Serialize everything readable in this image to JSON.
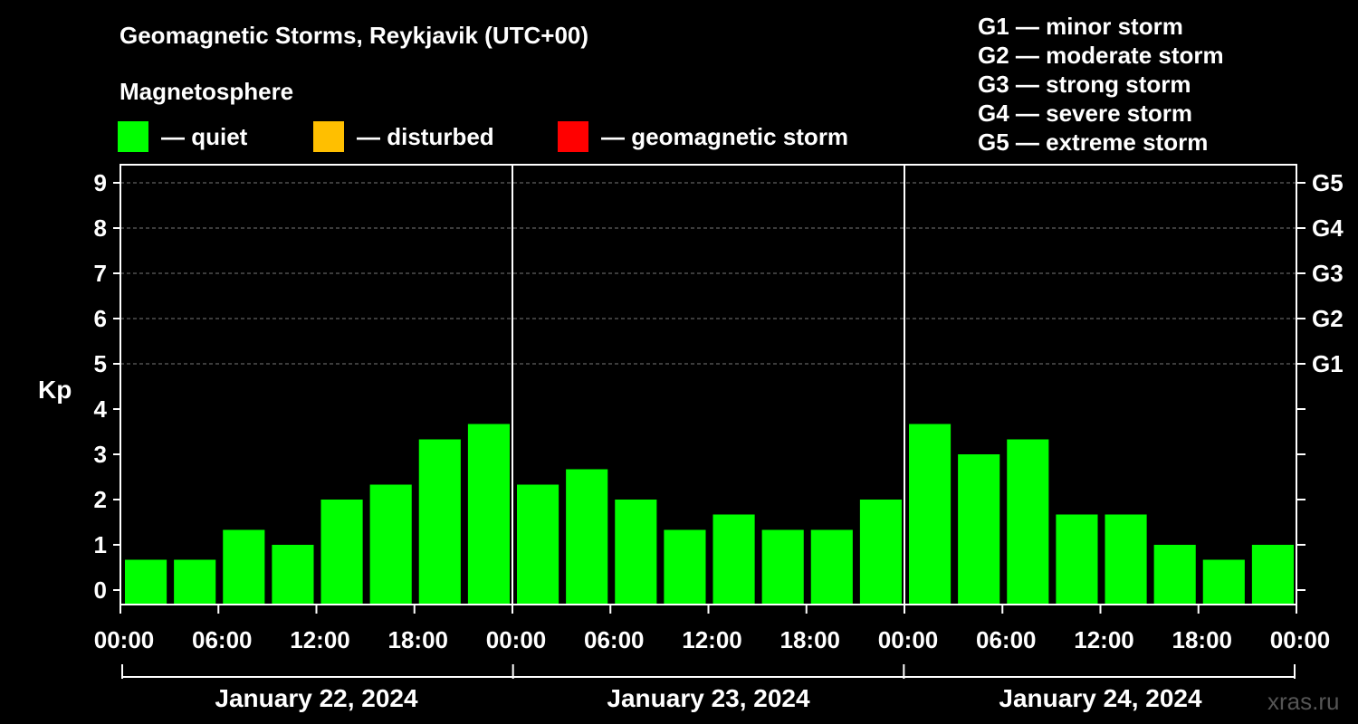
{
  "chart_data": {
    "type": "bar",
    "title": "Geomagnetic Storms, Reykjavik (UTC+00)",
    "subtitle": "Magnetosphere",
    "ylabel": "Kp",
    "ylim": [
      0,
      9
    ],
    "y_ticks": [
      "0",
      "1",
      "2",
      "3",
      "4",
      "5",
      "6",
      "7",
      "8",
      "9"
    ],
    "right_ticks": [
      {
        "label": "G1",
        "kp": 5
      },
      {
        "label": "G2",
        "kp": 6
      },
      {
        "label": "G3",
        "kp": 7
      },
      {
        "label": "G4",
        "kp": 8
      },
      {
        "label": "G5",
        "kp": 9
      }
    ],
    "x_tick_labels": [
      "00:00",
      "06:00",
      "12:00",
      "18:00",
      "00:00",
      "06:00",
      "12:00",
      "18:00",
      "00:00",
      "06:00",
      "12:00",
      "18:00",
      "00:00"
    ],
    "days": [
      "January 22, 2024",
      "January 23, 2024",
      "January 24, 2024"
    ],
    "legend": [
      {
        "label": "— quiet",
        "color": "#00ff00"
      },
      {
        "label": "— disturbed",
        "color": "#ffbf00"
      },
      {
        "label": "— geomagnetic storm",
        "color": "#ff0000"
      }
    ],
    "storm_scale": [
      "G1 — minor storm",
      "G2 — moderate storm",
      "G3 — strong storm",
      "G4 — severe storm",
      "G5 — extreme storm"
    ],
    "grid": true,
    "series": [
      {
        "values": [
          0.67,
          0.67,
          1.33,
          1.0,
          2.0,
          2.33,
          3.33,
          3.67,
          2.33,
          2.67,
          2.0,
          1.33,
          1.67,
          1.33,
          1.33,
          2.0,
          3.67,
          3.0,
          3.33,
          1.67,
          1.67,
          1.0,
          0.67,
          1.0
        ],
        "color": "#00ff00"
      }
    ]
  },
  "watermark": "xras.ru"
}
